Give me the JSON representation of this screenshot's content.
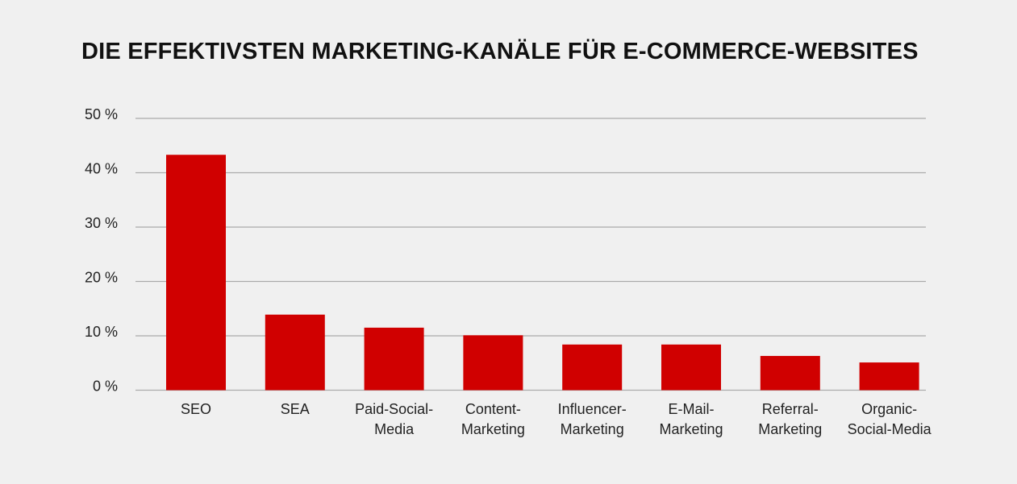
{
  "chart_data": {
    "type": "bar",
    "title": "DIE EFFEKTIVSTEN MARKETING-KANÄLE FÜR E-COMMERCE-WEBSITES",
    "xlabel": "",
    "ylabel": "",
    "ylim": [
      0,
      50
    ],
    "yticks": [
      0,
      10,
      20,
      30,
      40,
      50
    ],
    "ytick_labels": [
      "0 %",
      "10 %",
      "20 %",
      "30 %",
      "40 %",
      "50 %"
    ],
    "grid": true,
    "categories": [
      [
        "SEO"
      ],
      [
        "SEA"
      ],
      [
        "Paid-Social-",
        "Media"
      ],
      [
        "Content-",
        "Marketing"
      ],
      [
        "Influencer-",
        "Marketing"
      ],
      [
        "E-Mail-",
        "Marketing"
      ],
      [
        "Referral-",
        "Marketing"
      ],
      [
        "Organic-",
        "Social-Media"
      ]
    ],
    "values": [
      43.3,
      13.9,
      11.5,
      10.1,
      8.4,
      8.4,
      6.3,
      5.1
    ],
    "color": "#d00000",
    "grid_color": "#aaaaaa"
  }
}
